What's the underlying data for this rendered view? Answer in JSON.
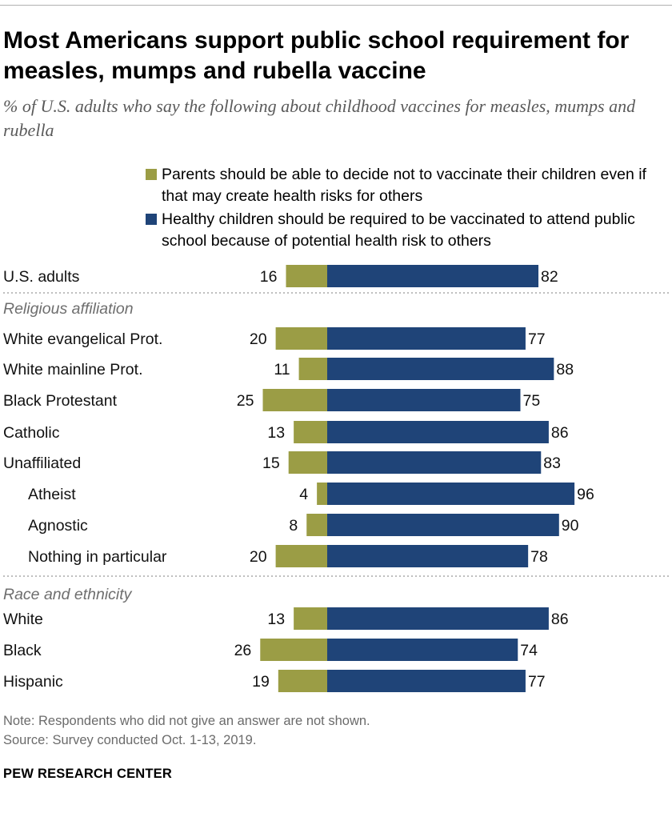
{
  "title": "Most Americans support public school requirement for measles, mumps and rubella vaccine",
  "subtitle": "% of U.S. adults who say the following about childhood vaccines for measles, mumps and rubella",
  "legend": {
    "parents": "Parents should be able to decide not to vaccinate their children even if that may create health risks for others",
    "required": "Healthy children should be required to be vaccinated to attend public school because of potential health risk to others"
  },
  "colors": {
    "parents": "#9b9d45",
    "required": "#1f4478",
    "divider": "#a8a8a8"
  },
  "chart_data": {
    "type": "bar",
    "orientation": "horizontal-diverging",
    "title": "Most Americans support public school requirement for measles, mumps and rubella vaccine",
    "series": [
      {
        "name": "Parents should be able to decide not to vaccinate their children even if that may create health risks for others",
        "key": "parents"
      },
      {
        "name": "Healthy children should be required to be vaccinated to attend public school because of potential health risk to others",
        "key": "required"
      }
    ],
    "sections": [
      {
        "heading": "",
        "rows": [
          {
            "label": "U.S. adults",
            "parents": 16,
            "required": 82,
            "indent": false
          }
        ]
      },
      {
        "heading": "Religious affiliation",
        "rows": [
          {
            "label": "White evangelical Prot.",
            "parents": 20,
            "required": 77,
            "indent": false
          },
          {
            "label": "White mainline Prot.",
            "parents": 11,
            "required": 88,
            "indent": false
          },
          {
            "label": "Black Protestant",
            "parents": 25,
            "required": 75,
            "indent": false
          },
          {
            "label": "Catholic",
            "parents": 13,
            "required": 86,
            "indent": false
          },
          {
            "label": "Unaffiliated",
            "parents": 15,
            "required": 83,
            "indent": false
          },
          {
            "label": "Atheist",
            "parents": 4,
            "required": 96,
            "indent": true
          },
          {
            "label": "Agnostic",
            "parents": 8,
            "required": 90,
            "indent": true
          },
          {
            "label": "Nothing in particular",
            "parents": 20,
            "required": 78,
            "indent": true
          }
        ]
      },
      {
        "heading": "Race and ethnicity",
        "rows": [
          {
            "label": "White",
            "parents": 13,
            "required": 86,
            "indent": false
          },
          {
            "label": "Black",
            "parents": 26,
            "required": 74,
            "indent": false
          },
          {
            "label": "Hispanic",
            "parents": 19,
            "required": 77,
            "indent": false
          }
        ]
      }
    ]
  },
  "note": "Note: Respondents who did not give an answer are not shown.",
  "source": "Source: Survey conducted Oct. 1-13, 2019.",
  "org": "PEW RESEARCH CENTER"
}
